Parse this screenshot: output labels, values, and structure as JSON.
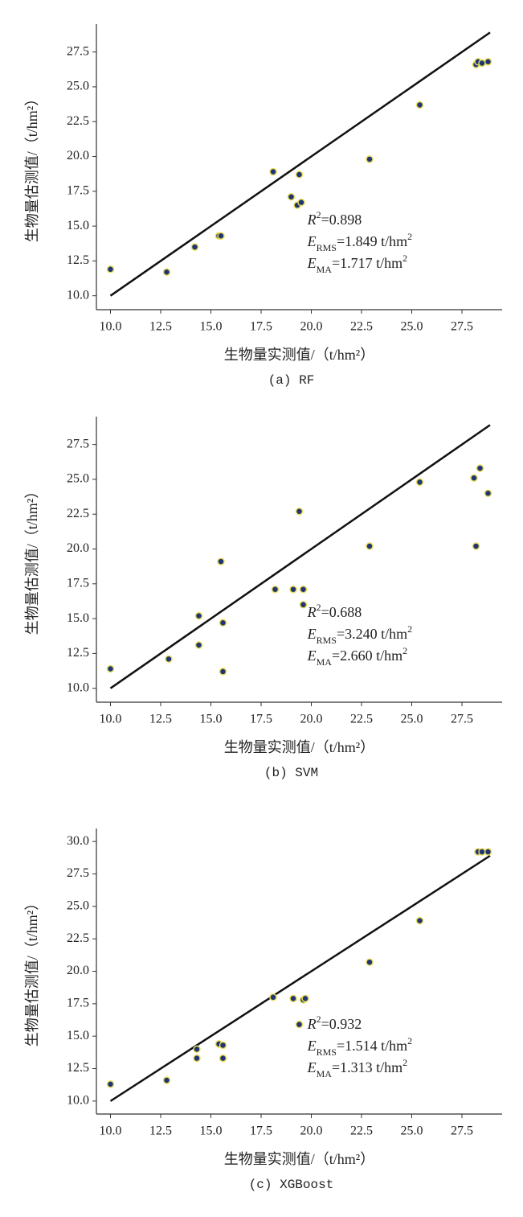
{
  "chart_data": [
    {
      "type": "scatter",
      "caption": "(a) RF",
      "xlabel": "生物量实测值/（t/hm²）",
      "ylabel": "生物量估测值/（t/hm²）",
      "x": [
        10.0,
        12.8,
        14.2,
        15.4,
        15.5,
        18.1,
        19.0,
        19.3,
        19.5,
        19.4,
        22.9,
        25.4,
        28.2,
        28.3,
        28.5,
        28.8
      ],
      "y": [
        11.9,
        11.7,
        13.5,
        14.3,
        14.3,
        18.9,
        17.1,
        16.5,
        16.7,
        18.7,
        19.8,
        23.7,
        26.6,
        26.8,
        26.7,
        26.8
      ],
      "color": "#1f3575",
      "edge_color": "#e8dc5a",
      "reference_line": {
        "x": [
          10.0,
          28.9
        ],
        "y": [
          10.0,
          28.9
        ],
        "color": "#111"
      },
      "xlim": [
        9.3,
        29.5
      ],
      "ylim": [
        9.0,
        29.5
      ],
      "xticks": [
        {
          "value": 10,
          "label": "10.0"
        },
        {
          "value": 12.5,
          "label": "12.5"
        },
        {
          "value": 15,
          "label": "15.0"
        },
        {
          "value": 17.5,
          "label": "17.5"
        },
        {
          "value": 20,
          "label": "20.0"
        },
        {
          "value": 22.5,
          "label": "22.5"
        },
        {
          "value": 25,
          "label": "25.0"
        },
        {
          "value": 27.5,
          "label": "27.5"
        }
      ],
      "yticks": [
        {
          "value": 10,
          "label": "10.0"
        },
        {
          "value": 12.5,
          "label": "12.5"
        },
        {
          "value": 15,
          "label": "15.0"
        },
        {
          "value": 17.5,
          "label": "17.5"
        },
        {
          "value": 20,
          "label": "20.0"
        },
        {
          "value": 22.5,
          "label": "22.5"
        },
        {
          "value": 25,
          "label": "25.0"
        },
        {
          "value": 27.5,
          "label": "27.5"
        }
      ],
      "annotations": [
        [
          {
            "t": "R",
            "italic": true
          },
          {
            "t": "2",
            "sup": true
          },
          {
            "t": "=0.898"
          }
        ],
        [
          {
            "t": "E",
            "italic": true
          },
          {
            "t": "RMS",
            "sub": true
          },
          {
            "t": "=1.849 t/hm"
          },
          {
            "t": "2",
            "sup": true
          }
        ],
        [
          {
            "t": "E",
            "italic": true
          },
          {
            "t": "MA",
            "sub": true
          },
          {
            "t": "=1.717 t/hm"
          },
          {
            "t": "2",
            "sup": true
          }
        ]
      ]
    },
    {
      "type": "scatter",
      "caption": "(b) SVM",
      "xlabel": "生物量实测值/（t/hm²）",
      "ylabel": "生物量估测值/（t/hm²）",
      "x": [
        10.0,
        12.9,
        14.4,
        14.4,
        15.5,
        15.6,
        15.6,
        18.2,
        19.1,
        19.4,
        19.6,
        19.6,
        22.9,
        25.4,
        28.1,
        28.4,
        28.2,
        28.8
      ],
      "y": [
        11.4,
        12.1,
        15.2,
        13.1,
        19.1,
        14.7,
        11.2,
        17.1,
        17.1,
        22.7,
        17.1,
        16.0,
        20.2,
        24.8,
        25.1,
        25.8,
        20.2,
        24.0
      ],
      "color": "#1f3575",
      "edge_color": "#e8dc5a",
      "reference_line": {
        "x": [
          10.0,
          28.9
        ],
        "y": [
          10.0,
          28.9
        ],
        "color": "#111"
      },
      "xlim": [
        9.3,
        29.5
      ],
      "ylim": [
        9.0,
        29.5
      ],
      "xticks": [
        {
          "value": 10,
          "label": "10.0"
        },
        {
          "value": 12.5,
          "label": "12.5"
        },
        {
          "value": 15,
          "label": "15.0"
        },
        {
          "value": 17.5,
          "label": "17.5"
        },
        {
          "value": 20,
          "label": "20.0"
        },
        {
          "value": 22.5,
          "label": "22.5"
        },
        {
          "value": 25,
          "label": "25.0"
        },
        {
          "value": 27.5,
          "label": "27.5"
        }
      ],
      "yticks": [
        {
          "value": 10,
          "label": "10.0"
        },
        {
          "value": 12.5,
          "label": "12.5"
        },
        {
          "value": 15,
          "label": "15.0"
        },
        {
          "value": 17.5,
          "label": "17.5"
        },
        {
          "value": 20,
          "label": "20.0"
        },
        {
          "value": 22.5,
          "label": "22.5"
        },
        {
          "value": 25,
          "label": "25.0"
        },
        {
          "value": 27.5,
          "label": "27.5"
        }
      ],
      "annotations": [
        [
          {
            "t": "R",
            "italic": true
          },
          {
            "t": "2",
            "sup": true
          },
          {
            "t": "=0.688"
          }
        ],
        [
          {
            "t": "E",
            "italic": true
          },
          {
            "t": "RMS",
            "sub": true
          },
          {
            "t": "=3.240 t/hm"
          },
          {
            "t": "2",
            "sup": true
          }
        ],
        [
          {
            "t": "E",
            "italic": true
          },
          {
            "t": "MA",
            "sub": true
          },
          {
            "t": "=2.660 t/hm"
          },
          {
            "t": "2",
            "sup": true
          }
        ]
      ]
    },
    {
      "type": "scatter",
      "caption": "(c) XGBoost",
      "xlabel": "生物量实测值/（t/hm²）",
      "ylabel": "生物量估测值/（t/hm²）",
      "x": [
        10.0,
        12.8,
        14.3,
        14.3,
        15.4,
        15.6,
        15.6,
        18.1,
        19.1,
        19.6,
        19.7,
        19.4,
        22.9,
        25.4,
        28.3,
        28.5,
        28.8
      ],
      "y": [
        11.3,
        11.6,
        14.0,
        13.3,
        14.4,
        14.3,
        13.3,
        18.0,
        17.9,
        17.8,
        17.9,
        15.9,
        20.7,
        23.9,
        29.2,
        29.2,
        29.2
      ],
      "color": "#1f3575",
      "edge_color": "#e8dc5a",
      "reference_line": {
        "x": [
          10.0,
          28.9
        ],
        "y": [
          10.0,
          28.9
        ],
        "color": "#111"
      },
      "xlim": [
        9.3,
        29.5
      ],
      "ylim": [
        9.0,
        31.0
      ],
      "xticks": [
        {
          "value": 10,
          "label": "10.0"
        },
        {
          "value": 12.5,
          "label": "12.5"
        },
        {
          "value": 15,
          "label": "15.0"
        },
        {
          "value": 17.5,
          "label": "17.5"
        },
        {
          "value": 20,
          "label": "20.0"
        },
        {
          "value": 22.5,
          "label": "22.5"
        },
        {
          "value": 25,
          "label": "25.0"
        },
        {
          "value": 27.5,
          "label": "27.5"
        }
      ],
      "yticks": [
        {
          "value": 10,
          "label": "10.0"
        },
        {
          "value": 12.5,
          "label": "12.5"
        },
        {
          "value": 15,
          "label": "15.0"
        },
        {
          "value": 17.5,
          "label": "17.5"
        },
        {
          "value": 20,
          "label": "20.0"
        },
        {
          "value": 22.5,
          "label": "22.5"
        },
        {
          "value": 25,
          "label": "25.0"
        },
        {
          "value": 27.5,
          "label": "27.5"
        },
        {
          "value": 30,
          "label": "30.0"
        }
      ],
      "annotations": [
        [
          {
            "t": "R",
            "italic": true
          },
          {
            "t": "2",
            "sup": true
          },
          {
            "t": "=0.932"
          }
        ],
        [
          {
            "t": "E",
            "italic": true
          },
          {
            "t": "RMS",
            "sub": true
          },
          {
            "t": "=1.514 t/hm"
          },
          {
            "t": "2",
            "sup": true
          }
        ],
        [
          {
            "t": "E",
            "italic": true
          },
          {
            "t": "MA",
            "sub": true
          },
          {
            "t": "=1.313 t/hm"
          },
          {
            "t": "2",
            "sup": true
          }
        ]
      ]
    }
  ]
}
